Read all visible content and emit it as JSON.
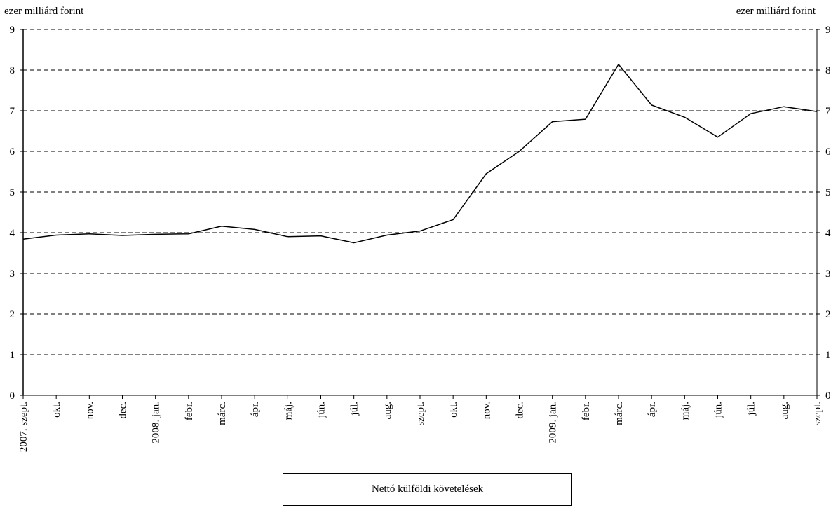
{
  "chart_data": {
    "type": "line",
    "y_unit_left": "ezer milliárd forint",
    "y_unit_right": "ezer milliárd forint",
    "categories": [
      "2007. szept.",
      "okt.",
      "nov.",
      "dec.",
      "2008. jan.",
      "febr.",
      "márc.",
      "ápr.",
      "máj.",
      "jún.",
      "júl.",
      "aug.",
      "szept.",
      "okt.",
      "nov.",
      "dec.",
      "2009. jan.",
      "febr.",
      "márc.",
      "ápr.",
      "máj.",
      "jún.",
      "júl.",
      "aug.",
      "szept."
    ],
    "series": [
      {
        "name": "Nettó külföldi követelések",
        "color": "#000000",
        "values": [
          3.84,
          3.94,
          3.97,
          3.93,
          3.96,
          3.97,
          4.16,
          4.08,
          3.9,
          3.92,
          3.75,
          3.94,
          4.04,
          4.32,
          5.45,
          6.0,
          6.73,
          6.79,
          8.14,
          7.14,
          6.84,
          6.35,
          6.93,
          7.1,
          6.98
        ]
      }
    ],
    "ylim": [
      0,
      9
    ],
    "yticks": [
      0,
      1,
      2,
      3,
      4,
      5,
      6,
      7,
      8,
      9
    ],
    "grid": "horizontal-dashed",
    "legend_position": "bottom-center"
  }
}
